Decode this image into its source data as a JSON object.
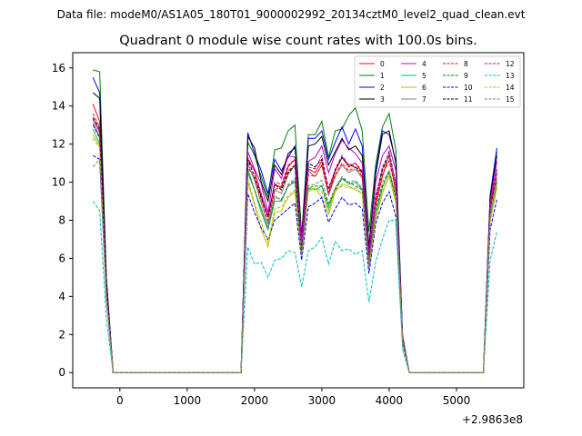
{
  "suptitle": "Data file: modeM0/AS1A05_180T01_9000002992_20134cztM0_level2_quad_clean.evt",
  "chart_data": {
    "type": "line",
    "title": "Quadrant 0 module wise count rates with 100.0s bins.",
    "xlabel": "",
    "ylabel": "",
    "offset_text": "+2.9863e8",
    "xlim": [
      -700,
      6000
    ],
    "ylim": [
      -0.8,
      16.8
    ],
    "x_ticks": [
      0,
      1000,
      2000,
      3000,
      4000,
      5000
    ],
    "y_ticks": [
      0,
      2,
      4,
      6,
      8,
      10,
      12,
      14,
      16
    ],
    "legend_position": "top-right",
    "x": [
      -400,
      -300,
      -200,
      -100,
      0,
      100,
      200,
      300,
      400,
      500,
      600,
      700,
      800,
      900,
      1000,
      1100,
      1200,
      1300,
      1400,
      1500,
      1600,
      1700,
      1800,
      1900,
      2000,
      2100,
      2200,
      2300,
      2400,
      2500,
      2600,
      2700,
      2800,
      2900,
      3000,
      3100,
      3200,
      3300,
      3400,
      3500,
      3600,
      3700,
      3800,
      3900,
      4000,
      4100,
      4200,
      4300,
      4400,
      4500,
      4600,
      4700,
      4800,
      4900,
      5000,
      5100,
      5200,
      5300,
      5400,
      5500,
      5600
    ],
    "series": [
      {
        "name": "0",
        "color": "#ff0000",
        "dash": false,
        "values": [
          14.1,
          13.2,
          4.6,
          0,
          0,
          0,
          0,
          0,
          0,
          0,
          0,
          0,
          0,
          0,
          0,
          0,
          0,
          0,
          0,
          0,
          0,
          0,
          0,
          11.2,
          10.6,
          9.3,
          8.2,
          9.9,
          9.7,
          10.8,
          11.2,
          6.6,
          10.7,
          10.5,
          11.1,
          9.4,
          10.6,
          11.3,
          10.8,
          11.0,
          10.5,
          5.8,
          8.8,
          10.3,
          11.4,
          9.5,
          1.8,
          0,
          0,
          0,
          0,
          0,
          0,
          0,
          0,
          0,
          0,
          0,
          0,
          8.8,
          10.5
        ]
      },
      {
        "name": "1",
        "color": "#008000",
        "dash": false,
        "values": [
          15.9,
          15.8,
          5.0,
          0,
          0,
          0,
          0,
          0,
          0,
          0,
          0,
          0,
          0,
          0,
          0,
          0,
          0,
          0,
          0,
          0,
          0,
          0,
          0,
          12.1,
          11.4,
          10.3,
          9.2,
          11.7,
          11.8,
          12.7,
          13.0,
          7.2,
          12.5,
          12.5,
          13.2,
          11.3,
          12.7,
          12.8,
          13.5,
          13.9,
          12.7,
          7.4,
          10.9,
          12.9,
          13.6,
          11.7,
          1.9,
          0,
          0,
          0,
          0,
          0,
          0,
          0,
          0,
          0,
          0,
          0,
          0,
          9.3,
          11.6
        ]
      },
      {
        "name": "2",
        "color": "#0000ff",
        "dash": false,
        "values": [
          15.5,
          14.7,
          4.9,
          0,
          0,
          0,
          0,
          0,
          0,
          0,
          0,
          0,
          0,
          0,
          0,
          0,
          0,
          0,
          0,
          0,
          0,
          0,
          0,
          12.6,
          11.5,
          10.6,
          9.4,
          11.2,
          10.6,
          11.3,
          11.9,
          7.0,
          12.3,
          12.3,
          12.7,
          11.2,
          12.1,
          12.9,
          12.0,
          12.8,
          11.9,
          6.6,
          10.6,
          12.7,
          12.5,
          11.1,
          1.9,
          0,
          0,
          0,
          0,
          0,
          0,
          0,
          0,
          0,
          0,
          0,
          0,
          9.3,
          11.8
        ]
      },
      {
        "name": "3",
        "color": "#000000",
        "dash": false,
        "values": [
          14.7,
          14.4,
          4.8,
          0,
          0,
          0,
          0,
          0,
          0,
          0,
          0,
          0,
          0,
          0,
          0,
          0,
          0,
          0,
          0,
          0,
          0,
          0,
          0,
          12.4,
          11.8,
          10.0,
          9.0,
          10.9,
          10.4,
          11.5,
          11.8,
          7.1,
          11.9,
          12.0,
          12.4,
          10.9,
          11.6,
          12.3,
          11.7,
          11.9,
          11.4,
          6.6,
          10.4,
          12.5,
          12.7,
          11.0,
          1.9,
          0,
          0,
          0,
          0,
          0,
          0,
          0,
          0,
          0,
          0,
          0,
          0,
          9.2,
          11.4
        ]
      },
      {
        "name": "4",
        "color": "#bf00bf",
        "dash": false,
        "values": [
          13.1,
          12.4,
          4.4,
          0,
          0,
          0,
          0,
          0,
          0,
          0,
          0,
          0,
          0,
          0,
          0,
          0,
          0,
          0,
          0,
          0,
          0,
          0,
          0,
          11.6,
          10.7,
          9.9,
          8.4,
          10.7,
          10.2,
          11.4,
          11.3,
          7.0,
          11.1,
          11.3,
          11.9,
          10.5,
          11.5,
          12.2,
          11.8,
          11.5,
          11.0,
          6.3,
          10.0,
          11.4,
          11.9,
          10.6,
          1.8,
          0,
          0,
          0,
          0,
          0,
          0,
          0,
          0,
          0,
          0,
          0,
          0,
          8.9,
          11.1
        ]
      },
      {
        "name": "5",
        "color": "#00bf7f",
        "dash": false,
        "values": [
          12.8,
          12.0,
          4.2,
          0,
          0,
          0,
          0,
          0,
          0,
          0,
          0,
          0,
          0,
          0,
          0,
          0,
          0,
          0,
          0,
          0,
          0,
          0,
          0,
          10.7,
          9.6,
          8.4,
          7.5,
          9.0,
          9.0,
          9.8,
          10.0,
          6.2,
          9.7,
          9.6,
          9.8,
          8.6,
          9.7,
          10.2,
          9.9,
          10.0,
          9.6,
          5.7,
          8.3,
          9.7,
          10.6,
          9.2,
          1.6,
          0,
          0,
          0,
          0,
          0,
          0,
          0,
          0,
          0,
          0,
          0,
          0,
          8.1,
          10.0
        ]
      },
      {
        "name": "6",
        "color": "#bfbf00",
        "dash": false,
        "values": [
          12.5,
          11.9,
          4.1,
          0,
          0,
          0,
          0,
          0,
          0,
          0,
          0,
          0,
          0,
          0,
          0,
          0,
          0,
          0,
          0,
          0,
          0,
          0,
          0,
          10.0,
          8.8,
          7.5,
          6.6,
          8.4,
          8.5,
          9.2,
          9.5,
          6.0,
          9.6,
          9.7,
          9.2,
          8.3,
          9.5,
          9.9,
          9.8,
          9.6,
          9.4,
          5.5,
          8.0,
          9.4,
          10.3,
          8.9,
          1.6,
          0,
          0,
          0,
          0,
          0,
          0,
          0,
          0,
          0,
          0,
          0,
          0,
          7.9,
          9.7
        ]
      },
      {
        "name": "7",
        "color": "#7f7f7f",
        "dash": false,
        "values": [
          13.3,
          12.6,
          4.3,
          0,
          0,
          0,
          0,
          0,
          0,
          0,
          0,
          0,
          0,
          0,
          0,
          0,
          0,
          0,
          0,
          0,
          0,
          0,
          0,
          11.0,
          10.1,
          8.9,
          7.8,
          9.6,
          9.4,
          10.4,
          10.9,
          6.5,
          10.6,
          10.3,
          10.9,
          9.3,
          10.3,
          10.9,
          10.5,
          10.7,
          10.2,
          6.0,
          9.1,
          10.7,
          11.3,
          9.9,
          1.7,
          0,
          0,
          0,
          0,
          0,
          0,
          0,
          0,
          0,
          0,
          0,
          0,
          8.5,
          10.5
        ]
      },
      {
        "name": "8",
        "color": "#ff0000",
        "dash": true,
        "values": [
          13.6,
          12.9,
          4.5,
          0,
          0,
          0,
          0,
          0,
          0,
          0,
          0,
          0,
          0,
          0,
          0,
          0,
          0,
          0,
          0,
          0,
          0,
          0,
          0,
          10.8,
          10.2,
          9.1,
          8.0,
          9.6,
          9.8,
          10.6,
          10.9,
          6.4,
          10.4,
          10.3,
          10.9,
          9.4,
          10.4,
          11.0,
          10.6,
          10.8,
          10.3,
          5.9,
          9.0,
          10.4,
          11.1,
          9.6,
          1.7,
          0,
          0,
          0,
          0,
          0,
          0,
          0,
          0,
          0,
          0,
          0,
          0,
          8.6,
          10.3
        ]
      },
      {
        "name": "9",
        "color": "#008000",
        "dash": true,
        "values": [
          13.0,
          12.3,
          4.3,
          0,
          0,
          0,
          0,
          0,
          0,
          0,
          0,
          0,
          0,
          0,
          0,
          0,
          0,
          0,
          0,
          0,
          0,
          0,
          0,
          10.5,
          9.6,
          8.6,
          7.6,
          9.2,
          9.1,
          9.8,
          10.1,
          6.3,
          9.7,
          9.8,
          9.8,
          8.8,
          9.6,
          10.2,
          10.0,
          9.8,
          9.6,
          5.6,
          8.5,
          9.8,
          10.5,
          9.2,
          1.6,
          0,
          0,
          0,
          0,
          0,
          0,
          0,
          0,
          0,
          0,
          0,
          0,
          8.2,
          10.0
        ]
      },
      {
        "name": "10",
        "color": "#0000ff",
        "dash": true,
        "values": [
          11.4,
          11.2,
          3.9,
          0,
          0,
          0,
          0,
          0,
          0,
          0,
          0,
          0,
          0,
          0,
          0,
          0,
          0,
          0,
          0,
          0,
          0,
          0,
          0,
          9.4,
          8.4,
          7.6,
          7.0,
          8.0,
          8.3,
          8.6,
          8.9,
          5.9,
          8.7,
          8.9,
          9.2,
          7.9,
          8.6,
          9.2,
          8.8,
          8.9,
          8.6,
          5.2,
          7.8,
          8.9,
          9.5,
          8.2,
          1.5,
          0,
          0,
          0,
          0,
          0,
          0,
          0,
          0,
          0,
          0,
          0,
          0,
          7.5,
          9.1
        ]
      },
      {
        "name": "11",
        "color": "#000000",
        "dash": true,
        "values": [
          13.4,
          12.8,
          4.4,
          0,
          0,
          0,
          0,
          0,
          0,
          0,
          0,
          0,
          0,
          0,
          0,
          0,
          0,
          0,
          0,
          0,
          0,
          0,
          0,
          11.2,
          10.3,
          9.2,
          8.2,
          9.9,
          9.6,
          10.5,
          10.9,
          6.4,
          11.0,
          10.8,
          11.2,
          9.7,
          10.6,
          11.3,
          10.9,
          10.8,
          10.5,
          6.1,
          9.3,
          10.6,
          11.6,
          9.9,
          1.7,
          0,
          0,
          0,
          0,
          0,
          0,
          0,
          0,
          0,
          0,
          0,
          0,
          8.7,
          10.6
        ]
      },
      {
        "name": "12",
        "color": "#bf00bf",
        "dash": true,
        "values": [
          13.3,
          12.7,
          4.4,
          0,
          0,
          0,
          0,
          0,
          0,
          0,
          0,
          0,
          0,
          0,
          0,
          0,
          0,
          0,
          0,
          0,
          0,
          0,
          0,
          11.3,
          10.6,
          9.4,
          8.2,
          10.0,
          9.9,
          10.9,
          11.2,
          6.6,
          10.8,
          10.7,
          11.4,
          9.6,
          10.7,
          11.4,
          10.9,
          11.0,
          10.6,
          6.0,
          9.2,
          10.8,
          11.5,
          9.9,
          1.7,
          0,
          0,
          0,
          0,
          0,
          0,
          0,
          0,
          0,
          0,
          0,
          0,
          8.7,
          10.7
        ]
      },
      {
        "name": "13",
        "color": "#00bfbf",
        "dash": true,
        "values": [
          9.0,
          8.5,
          2.8,
          0,
          0,
          0,
          0,
          0,
          0,
          0,
          0,
          0,
          0,
          0,
          0,
          0,
          0,
          0,
          0,
          0,
          0,
          0,
          0,
          6.6,
          5.7,
          5.8,
          5.0,
          5.9,
          6.0,
          6.4,
          6.3,
          4.5,
          6.4,
          6.6,
          7.1,
          5.7,
          6.9,
          6.4,
          6.5,
          6.2,
          6.4,
          3.7,
          5.8,
          7.0,
          8.0,
          8.0,
          1.2,
          0,
          0,
          0,
          0,
          0,
          0,
          0,
          0,
          0,
          0,
          0,
          0,
          5.9,
          7.4
        ]
      },
      {
        "name": "14",
        "color": "#bfbf00",
        "dash": true,
        "values": [
          12.3,
          11.8,
          4.0,
          0,
          0,
          0,
          0,
          0,
          0,
          0,
          0,
          0,
          0,
          0,
          0,
          0,
          0,
          0,
          0,
          0,
          0,
          0,
          0,
          10.2,
          8.9,
          7.9,
          6.8,
          8.6,
          8.7,
          9.3,
          9.6,
          6.1,
          9.5,
          9.7,
          9.5,
          8.5,
          9.6,
          9.8,
          9.7,
          9.7,
          9.4,
          5.6,
          8.1,
          9.5,
          10.3,
          9.0,
          1.6,
          0,
          0,
          0,
          0,
          0,
          0,
          0,
          0,
          0,
          0,
          0,
          0,
          8.0,
          9.8
        ]
      },
      {
        "name": "15",
        "color": "#7f7f7f",
        "dash": true,
        "values": [
          10.8,
          11.2,
          3.8,
          0,
          0,
          0,
          0,
          0,
          0,
          0,
          0,
          0,
          0,
          0,
          0,
          0,
          0,
          0,
          0,
          0,
          0,
          0,
          0,
          10.5,
          9.6,
          8.6,
          7.6,
          9.3,
          9.0,
          9.9,
          10.2,
          6.2,
          9.8,
          9.9,
          10.1,
          8.9,
          9.7,
          10.3,
          10.0,
          10.1,
          9.7,
          5.7,
          8.6,
          10.0,
          10.6,
          9.4,
          1.6,
          0,
          0,
          0,
          0,
          0,
          0,
          0,
          0,
          0,
          0,
          0,
          0,
          8.3,
          10.1
        ]
      }
    ]
  }
}
